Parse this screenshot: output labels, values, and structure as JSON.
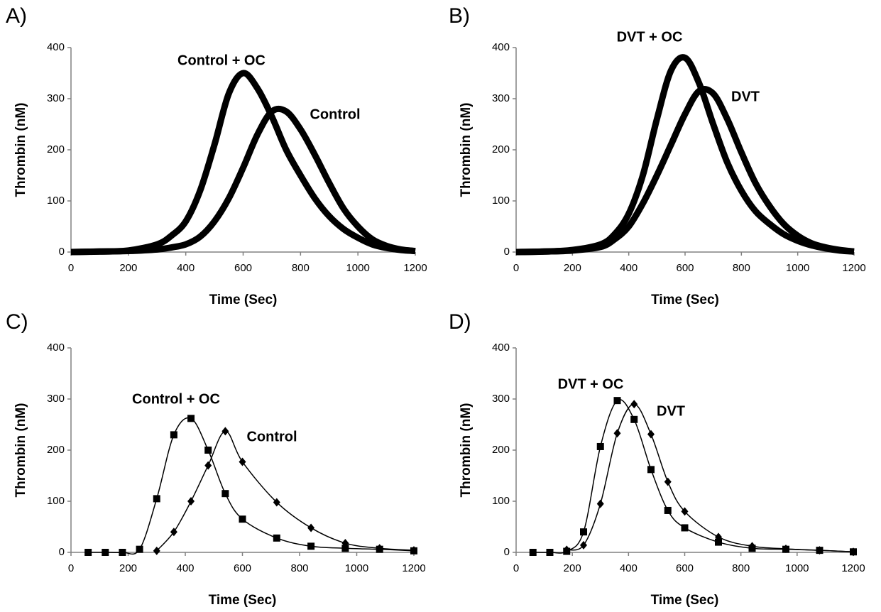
{
  "chart_data": [
    {
      "type": "line",
      "label": "A)",
      "xlabel": "Time (Sec)",
      "ylabel": "Thrombin (nM)",
      "xlim": [
        0,
        1200
      ],
      "xticks": [
        0,
        200,
        400,
        600,
        800,
        1000,
        1200
      ],
      "ylim": [
        0,
        400
      ],
      "yticks": [
        0,
        100,
        200,
        300,
        400
      ],
      "thick": true,
      "x": [
        0,
        100,
        200,
        300,
        350,
        400,
        450,
        500,
        550,
        600,
        650,
        700,
        750,
        800,
        850,
        900,
        950,
        1000,
        1050,
        1100,
        1150,
        1200
      ],
      "series": [
        {
          "name": "Control + OC",
          "color": "#000000",
          "values": [
            0,
            1,
            3,
            15,
            32,
            60,
            120,
            210,
            310,
            350,
            320,
            265,
            200,
            150,
            105,
            70,
            45,
            28,
            15,
            8,
            4,
            2
          ]
        },
        {
          "name": "Control",
          "color": "#000000",
          "values": [
            0,
            1,
            2,
            5,
            9,
            15,
            30,
            60,
            105,
            165,
            230,
            275,
            275,
            240,
            190,
            135,
            85,
            50,
            25,
            12,
            5,
            2
          ]
        }
      ]
    },
    {
      "type": "line",
      "label": "B)",
      "xlabel": "Time (Sec)",
      "ylabel": "Thrombin (nM)",
      "xlim": [
        0,
        1200
      ],
      "xticks": [
        0,
        200,
        400,
        600,
        800,
        1000,
        1200
      ],
      "ylim": [
        0,
        400
      ],
      "yticks": [
        0,
        100,
        200,
        300,
        400
      ],
      "thick": true,
      "x": [
        0,
        100,
        200,
        300,
        350,
        400,
        450,
        500,
        550,
        600,
        650,
        700,
        750,
        800,
        850,
        900,
        950,
        1000,
        1050,
        1100,
        1150,
        1200
      ],
      "series": [
        {
          "name": "DVT + OC",
          "color": "#000000",
          "values": [
            0,
            1,
            4,
            15,
            35,
            75,
            150,
            260,
            355,
            380,
            330,
            250,
            175,
            120,
            80,
            55,
            35,
            22,
            13,
            7,
            3,
            1
          ]
        },
        {
          "name": "DVT",
          "color": "#000000",
          "values": [
            0,
            1,
            3,
            10,
            25,
            50,
            95,
            150,
            210,
            270,
            315,
            310,
            260,
            195,
            135,
            90,
            55,
            32,
            17,
            9,
            4,
            1
          ]
        }
      ]
    },
    {
      "type": "line",
      "label": "C)",
      "xlabel": "Time (Sec)",
      "ylabel": "Thrombin (nM)",
      "xlim": [
        0,
        1200
      ],
      "xticks": [
        0,
        200,
        400,
        600,
        800,
        1000,
        1200
      ],
      "ylim": [
        0,
        400
      ],
      "yticks": [
        0,
        100,
        200,
        300,
        400
      ],
      "thick": false,
      "series": [
        {
          "name": "Control + OC",
          "color": "#000000",
          "marker": "square",
          "x": [
            60,
            120,
            180,
            240,
            300,
            360,
            420,
            480,
            540,
            600,
            720,
            840,
            960,
            1080,
            1200
          ],
          "values": [
            0,
            0,
            0,
            6,
            105,
            230,
            262,
            200,
            115,
            65,
            28,
            12,
            8,
            6,
            3
          ]
        },
        {
          "name": "Control",
          "color": "#000000",
          "marker": "diamond",
          "x": [
            300,
            360,
            420,
            480,
            540,
            600,
            720,
            840,
            960,
            1080,
            1200
          ],
          "values": [
            3,
            40,
            100,
            170,
            237,
            177,
            98,
            48,
            18,
            8,
            4
          ]
        }
      ]
    },
    {
      "type": "line",
      "label": "D)",
      "xlabel": "Time (Sec)",
      "ylabel": "Thrombin (nM)",
      "xlim": [
        0,
        1200
      ],
      "xticks": [
        0,
        200,
        400,
        600,
        800,
        1000,
        1200
      ],
      "ylim": [
        0,
        400
      ],
      "yticks": [
        0,
        100,
        200,
        300,
        400
      ],
      "thick": false,
      "series": [
        {
          "name": "DVT + OC",
          "color": "#000000",
          "marker": "square",
          "x": [
            60,
            120,
            180,
            240,
            300,
            360,
            420,
            480,
            540,
            600,
            720,
            840,
            960,
            1080,
            1200
          ],
          "values": [
            0,
            0,
            2,
            40,
            207,
            297,
            260,
            162,
            82,
            48,
            20,
            8,
            6,
            4,
            1
          ]
        },
        {
          "name": "DVT",
          "color": "#000000",
          "marker": "diamond",
          "x": [
            180,
            240,
            300,
            360,
            420,
            480,
            540,
            600,
            720,
            840,
            960,
            1080,
            1200
          ],
          "values": [
            5,
            14,
            95,
            233,
            290,
            231,
            138,
            80,
            30,
            12,
            7,
            4,
            1
          ]
        }
      ]
    }
  ]
}
